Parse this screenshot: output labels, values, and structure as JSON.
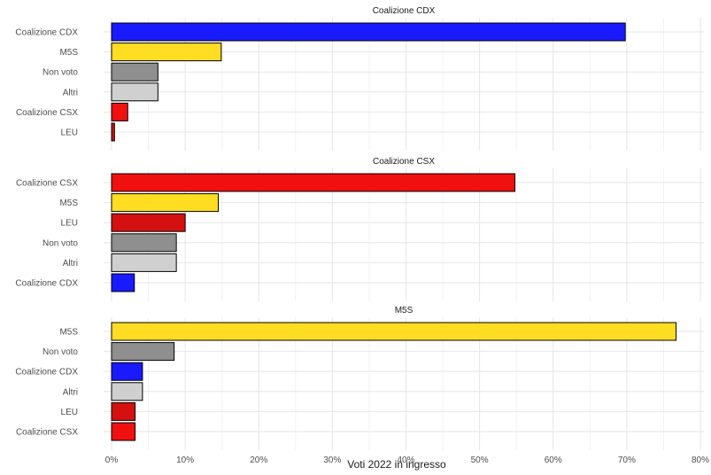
{
  "chart_data": {
    "type": "bar",
    "orientation": "horizontal",
    "xlabel": "Voti 2022 in ingresso",
    "xlim": [
      0,
      0.8
    ],
    "xticks": [
      0,
      0.1,
      0.2,
      0.3,
      0.4,
      0.5,
      0.6,
      0.7,
      0.8
    ],
    "xtick_labels": [
      "0%",
      "10%",
      "20%",
      "30%",
      "40%",
      "50%",
      "60%",
      "70%",
      "80%"
    ],
    "grid": true,
    "colors": {
      "Coalizione CDX": "#1a1aff",
      "M5S": "#ffdd22",
      "Non voto": "#8f8f8f",
      "Altri": "#d0d0d0",
      "Coalizione CSX": "#f01010",
      "LEU": "#d41010"
    },
    "panels": [
      {
        "title": "Coalizione CDX",
        "categories": [
          "Coalizione CDX",
          "M5S",
          "Non voto",
          "Altri",
          "Coalizione CSX",
          "LEU"
        ],
        "values": [
          0.698,
          0.149,
          0.063,
          0.063,
          0.022,
          0.004
        ]
      },
      {
        "title": "Coalizione CSX",
        "categories": [
          "Coalizione CSX",
          "M5S",
          "LEU",
          "Non voto",
          "Altri",
          "Coalizione CDX"
        ],
        "values": [
          0.548,
          0.145,
          0.1,
          0.088,
          0.088,
          0.031
        ]
      },
      {
        "title": "M5S",
        "categories": [
          "M5S",
          "Non voto",
          "Coalizione CDX",
          "Altri",
          "LEU",
          "Coalizione CSX"
        ],
        "values": [
          0.767,
          0.085,
          0.042,
          0.042,
          0.032,
          0.032
        ]
      }
    ]
  }
}
